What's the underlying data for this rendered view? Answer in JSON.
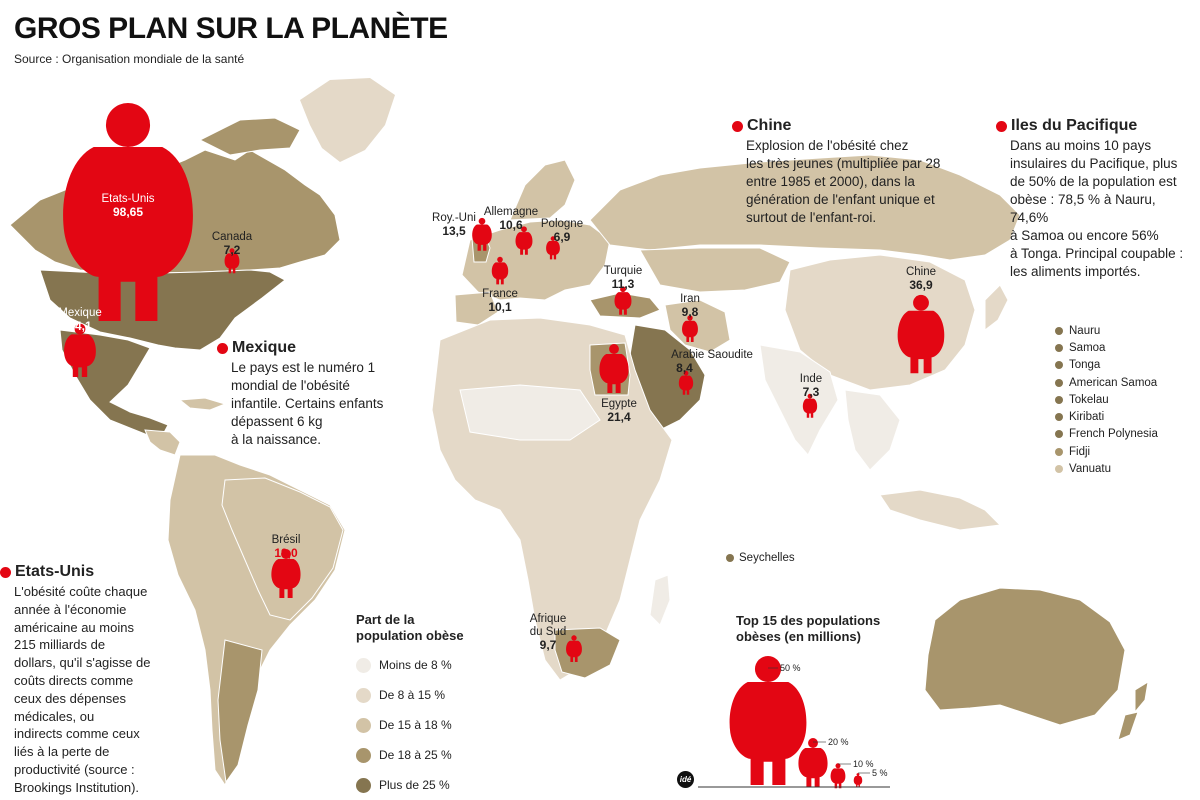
{
  "title": "GROS PLAN SUR LA PLANÈTE",
  "source": "Source : Organisation mondiale de la santé",
  "colors": {
    "accent": "#e30613",
    "lt8": "#f0ece6",
    "c8_15": "#e4d9c8",
    "c15_18": "#d2c3a6",
    "c18_25": "#a8956c",
    "gt25": "#857550"
  },
  "boxes": {
    "chine": {
      "title": "Chine",
      "text": [
        "Explosion de l'obésité chez",
        "les très jeunes (multipliée par 28",
        "entre 1985 et 2000), dans la",
        "génération de l'enfant unique et",
        "surtout de l'enfant-roi."
      ]
    },
    "pacifique": {
      "title": "Iles du Pacifique",
      "text": [
        "Dans au moins 10 pays",
        "insulaires du Pacifique, plus",
        "de 50% de la population est",
        "obèse : 78,5 % à Nauru, 74,6%",
        "à Samoa ou encore 56%",
        "à Tonga. Principal coupable :",
        "les aliments importés."
      ]
    },
    "mexique": {
      "title": "Mexique",
      "text": [
        "Le pays est le numéro 1",
        "mondial de l'obésité",
        "infantile. Certains enfants",
        "dépassent 6 kg",
        "à la naissance."
      ]
    },
    "etatsunis": {
      "title": "Etats-Unis",
      "text": [
        "L'obésité coûte chaque",
        "année à l'économie",
        "américaine au moins",
        "215 milliards de",
        "dollars, qu'il s'agisse de",
        "coûts directs comme",
        "ceux des dépenses",
        "médicales, ou",
        "indirects comme ceux",
        "liés à la perte de",
        "productivité (source :",
        "Brookings Institution)."
      ]
    }
  },
  "countries": [
    {
      "name": "Etats-Unis",
      "value": "98,65"
    },
    {
      "name": "Canada",
      "value": "7,2"
    },
    {
      "name": "Mexique",
      "value": "24,1"
    },
    {
      "name": "Brésil",
      "value": "19,0"
    },
    {
      "name": "Roy.-Uni",
      "value": "13,5"
    },
    {
      "name": "Allemagne",
      "value": "10,6"
    },
    {
      "name": "Pologne",
      "value": "6,9"
    },
    {
      "name": "France",
      "value": "10,1"
    },
    {
      "name": "Turquie",
      "value": "11,3"
    },
    {
      "name": "Iran",
      "value": "9,8"
    },
    {
      "name": "Arabie Saoudite",
      "value": "8,4"
    },
    {
      "name": "Egypte",
      "value": "21,4"
    },
    {
      "name": "Inde",
      "value": "7,3"
    },
    {
      "name": "Chine",
      "value": "36,9"
    },
    {
      "name": "Afrique du Sud",
      "value": "9,7"
    }
  ],
  "legend": {
    "title": [
      "Part de la",
      "population obèse"
    ],
    "items": [
      {
        "label": "Moins de 8 %",
        "color": "#f0ece6"
      },
      {
        "label": "De 8 à 15 %",
        "color": "#e4d9c8"
      },
      {
        "label": "De 15 à 18 %",
        "color": "#d2c3a6"
      },
      {
        "label": "De 18 à 25 %",
        "color": "#a8956c"
      },
      {
        "label": "Plus de 25 %",
        "color": "#857550"
      }
    ]
  },
  "pacific_islands": [
    {
      "label": "Nauru",
      "color": "#857550"
    },
    {
      "label": "Samoa",
      "color": "#857550"
    },
    {
      "label": "Tonga",
      "color": "#857550"
    },
    {
      "label": "American Samoa",
      "color": "#857550"
    },
    {
      "label": "Tokelau",
      "color": "#857550"
    },
    {
      "label": "Kiribati",
      "color": "#857550"
    },
    {
      "label": "French Polynesia",
      "color": "#857550"
    },
    {
      "label": "Fidji",
      "color": "#a8956c"
    },
    {
      "label": "Vanuatu",
      "color": "#d2c3a6"
    }
  ],
  "seychelles": {
    "label": "Seychelles",
    "color": "#857550"
  },
  "top15": {
    "title": [
      "Top 15 des populations",
      "obèses (en millions)"
    ],
    "scale": [
      "50 %",
      "20 %",
      "10 %",
      "5 %"
    ]
  },
  "logo": "idé"
}
